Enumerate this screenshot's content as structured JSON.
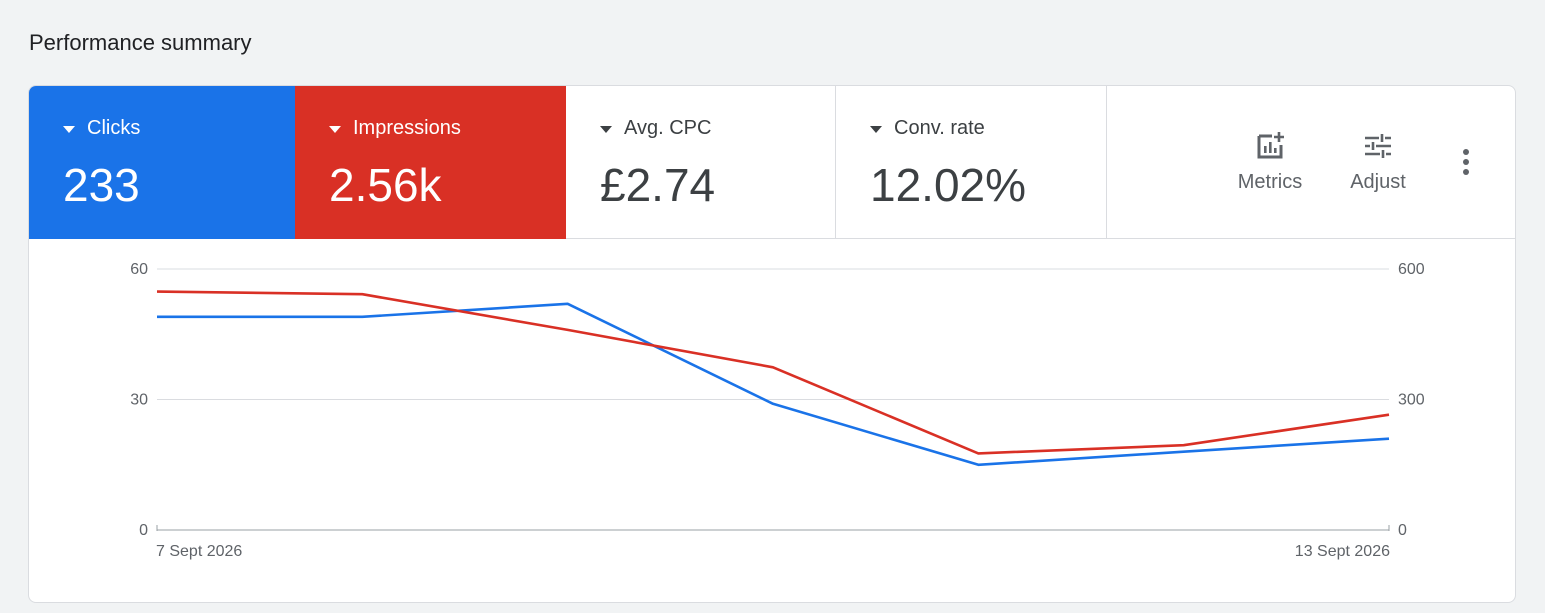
{
  "section_title": "Performance summary",
  "scorecards": {
    "clicks": {
      "label": "Clicks",
      "value": "233",
      "color": "#1a73e8",
      "selected": true
    },
    "impressions": {
      "label": "Impressions",
      "value": "2.56k",
      "color": "#d93025",
      "selected": true
    },
    "avg_cpc": {
      "label": "Avg. CPC",
      "value": "£2.74",
      "selected": false
    },
    "conv_rate": {
      "label": "Conv. rate",
      "value": "12.02%",
      "selected": false
    }
  },
  "tools": {
    "metrics": {
      "label": "Metrics",
      "icon": "add-chart-icon"
    },
    "adjust": {
      "label": "Adjust",
      "icon": "tune-icon"
    },
    "more": {
      "icon": "more-vert-icon"
    }
  },
  "chart_data": {
    "type": "line",
    "x_labels": [
      "7 Sept 2026",
      "",
      "",
      "",
      "",
      "",
      "13 Sept 2026"
    ],
    "series": [
      {
        "name": "Clicks",
        "axis": "left",
        "color": "#1a73e8",
        "values": [
          49,
          49,
          52,
          29,
          15,
          18,
          21
        ]
      },
      {
        "name": "Impressions",
        "axis": "right",
        "color": "#d93025",
        "values": [
          548,
          542,
          460,
          374,
          176,
          195,
          265
        ]
      }
    ],
    "y_left": {
      "ticks": [
        "0",
        "30",
        "60"
      ],
      "range": [
        0,
        60
      ]
    },
    "y_right": {
      "ticks": [
        "0",
        "300",
        "600"
      ],
      "range": [
        0,
        600
      ]
    },
    "grid": true
  }
}
